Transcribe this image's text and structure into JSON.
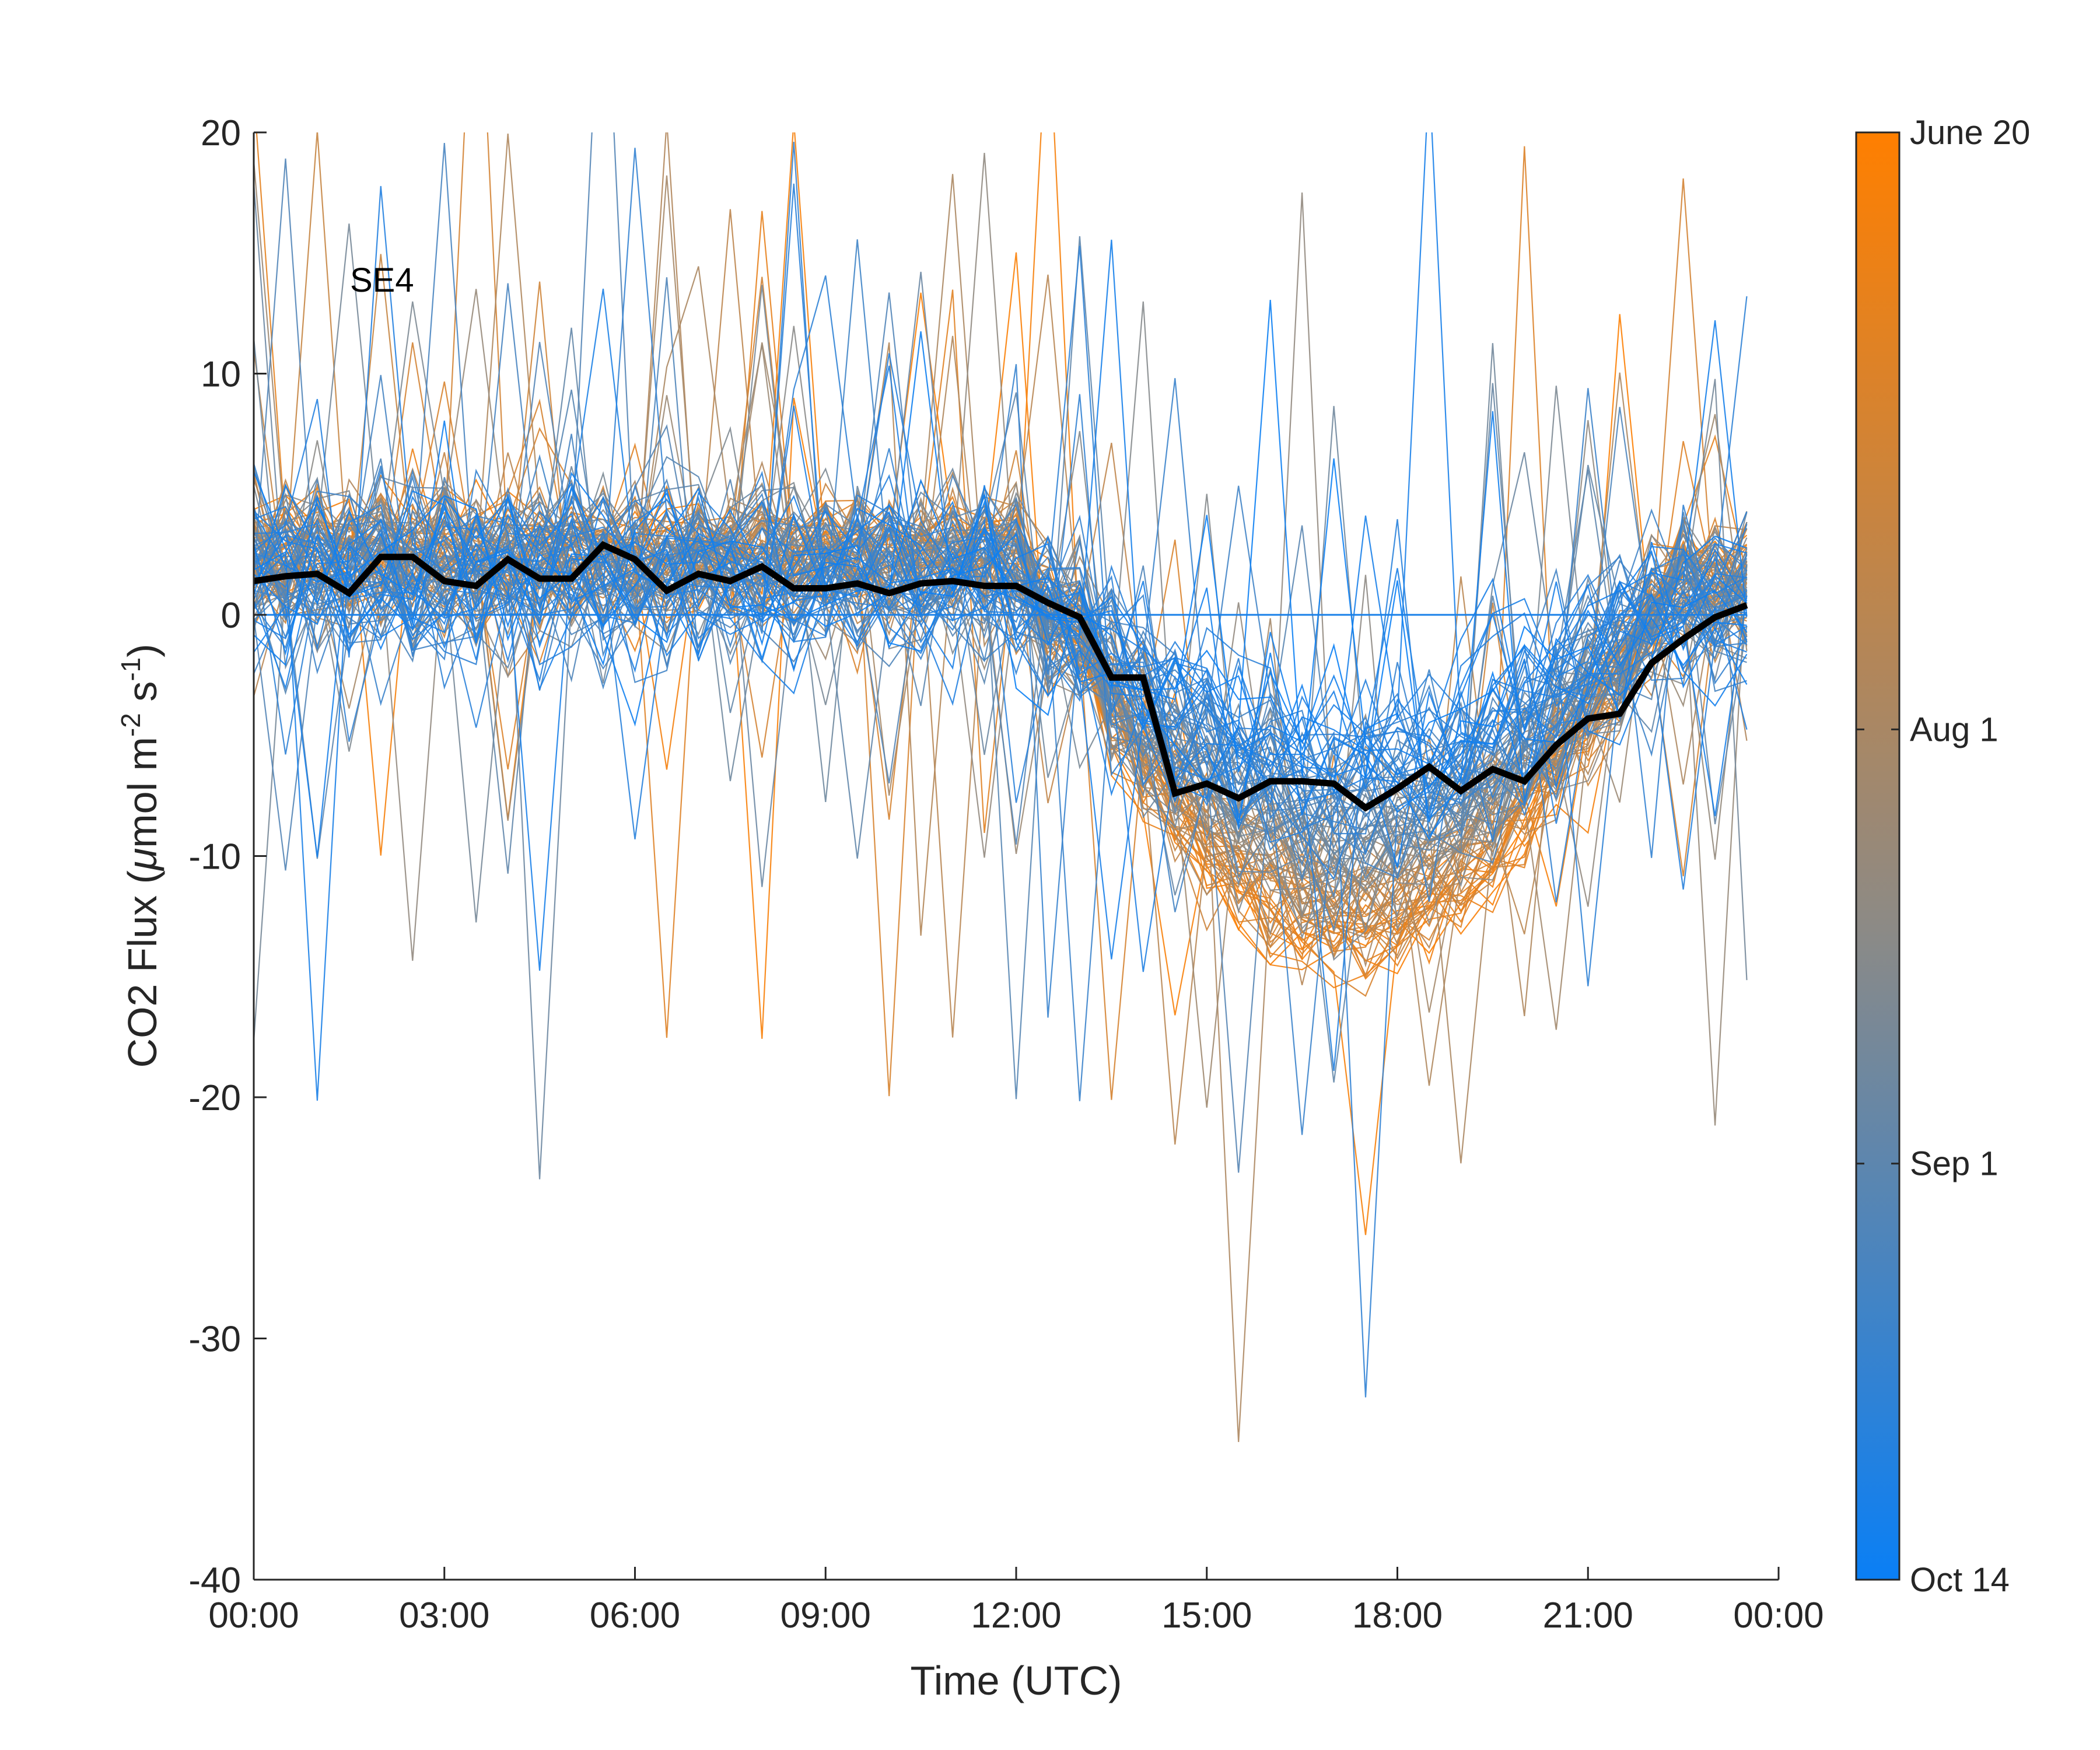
{
  "chart_data": {
    "type": "line",
    "annotation": "SE4",
    "xlabel": "Time (UTC)",
    "ylabel_parts": [
      "CO2 Flux (",
      "μ",
      "mol m",
      "-2",
      " s",
      "-1",
      ")"
    ],
    "x_ticks": [
      "00:00",
      "03:00",
      "06:00",
      "09:00",
      "12:00",
      "15:00",
      "18:00",
      "21:00",
      "00:00"
    ],
    "x_tick_hours": [
      0,
      3,
      6,
      9,
      12,
      15,
      18,
      21,
      24
    ],
    "xlim_hours": [
      0,
      24
    ],
    "ylim": [
      -40,
      20
    ],
    "y_ticks": [
      -40,
      -30,
      -20,
      -10,
      0,
      10,
      20
    ],
    "grid": false,
    "colorbar": {
      "labels": [
        "June 20",
        "Aug 1",
        "Sep 1",
        "Oct 14"
      ],
      "tick_positions": [
        0,
        0.4125,
        0.7125,
        1.0
      ],
      "colors": {
        "top": "#ff7f00",
        "middle": "#8c8a86",
        "bottom": "#0a7ff5"
      }
    },
    "individual_days": {
      "count": 116,
      "color_start": "#ff7f00",
      "color_mid": "#8c8a86",
      "color_end": "#0a7ff5",
      "line_width_note": "thin"
    },
    "mean": {
      "color": "#000000",
      "x_hours": [
        0,
        0.5,
        1,
        1.5,
        2,
        2.5,
        3,
        3.5,
        4,
        4.5,
        5,
        5.5,
        6,
        6.5,
        7,
        7.5,
        8,
        8.5,
        9,
        9.5,
        10,
        10.5,
        11,
        11.5,
        12,
        12.5,
        13,
        13.5,
        14,
        14.5,
        15,
        15.5,
        16,
        16.5,
        17,
        17.5,
        18,
        18.5,
        19,
        19.5,
        20,
        20.5,
        21,
        21.5,
        22,
        22.5,
        23,
        23.5
      ],
      "values": [
        1.4,
        1.6,
        1.7,
        0.9,
        2.4,
        2.4,
        1.4,
        1.2,
        2.3,
        1.5,
        1.5,
        2.9,
        2.3,
        1.0,
        1.7,
        1.4,
        2.0,
        1.1,
        1.1,
        1.3,
        0.9,
        1.3,
        1.4,
        1.2,
        1.2,
        0.5,
        -0.1,
        -2.6,
        -2.6,
        -7.4,
        -7.0,
        -7.6,
        -6.9,
        -6.9,
        -7.0,
        -8.0,
        -7.2,
        -6.3,
        -7.3,
        -6.4,
        -6.9,
        -5.4,
        -4.3,
        -4.1,
        -2.0,
        -1.0,
        -0.1,
        0.4
      ]
    }
  }
}
